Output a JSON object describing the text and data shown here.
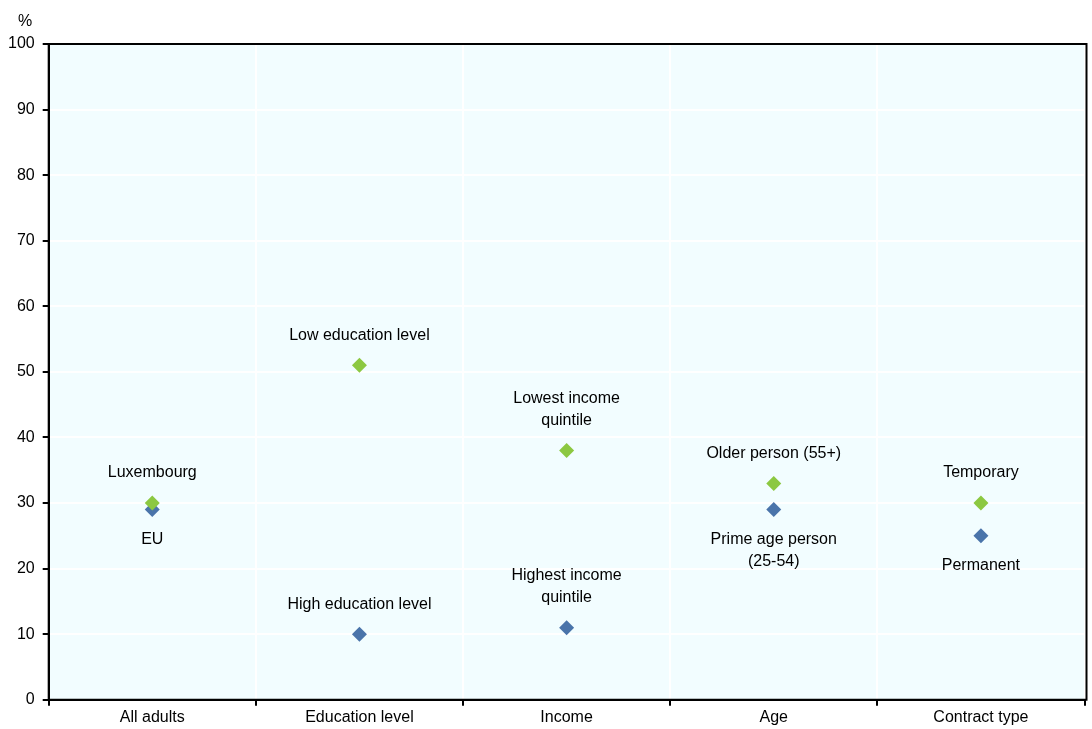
{
  "chart_data": {
    "type": "scatter",
    "ylabel": "%",
    "categories": [
      "All adults",
      "Education level",
      "Income",
      "Age",
      "Contract type"
    ],
    "series": [
      {
        "name": "Luxembourg",
        "color": "#8cc841",
        "values": [
          30,
          51,
          38,
          33,
          30
        ]
      },
      {
        "name": "EU",
        "color": "#4a74aa",
        "values": [
          29,
          10,
          11,
          29,
          25
        ]
      }
    ],
    "annotations": [
      {
        "text": "Low education level",
        "x": "Education level",
        "y": 51
      },
      {
        "text": "High education level",
        "x": "Education level",
        "y": 10
      },
      {
        "text": "Lowest income quintile",
        "x": "Income",
        "y": 38
      },
      {
        "text": "Highest income quintile",
        "x": "Income",
        "y": 11
      },
      {
        "text": "Older person (55+)",
        "x": "Age",
        "y": 33
      },
      {
        "text": "Prime age person (25-54)",
        "x": "Age",
        "y": 29
      },
      {
        "text": "Temporary",
        "x": "Contract type",
        "y": 30
      },
      {
        "text": "Permanent",
        "x": "Contract type",
        "y": 25
      }
    ],
    "ylim": [
      0,
      100
    ],
    "yticks": [
      0,
      10,
      20,
      30,
      40,
      50,
      60,
      70,
      80,
      90,
      100
    ],
    "grid": true,
    "marker": "diamond",
    "legend": false
  }
}
